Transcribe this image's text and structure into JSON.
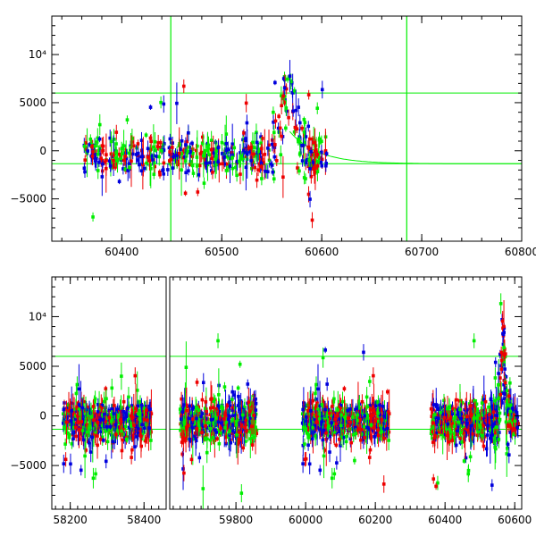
{
  "chart_data": [
    {
      "type": "scatter",
      "panel": "top",
      "title": "",
      "xlabel": "",
      "ylabel": "",
      "xlim": [
        60330,
        60800
      ],
      "ylim": [
        -9400,
        14000
      ],
      "x_ticks": [
        60400,
        60500,
        60600,
        60700,
        60800
      ],
      "y_ticks": [
        {
          "value": -5000,
          "label": "−5000"
        },
        {
          "value": 0,
          "label": "0"
        },
        {
          "value": 5000,
          "label": "5000"
        },
        {
          "value": 10000,
          "label": "10⁴"
        }
      ],
      "grid": false,
      "series_colors": [
        "#0000dd",
        "#ee0000",
        "#00ee00"
      ],
      "x_ranges": [
        [
          60362,
          60605
        ]
      ],
      "reference_lines": {
        "horizontal": [
          6000,
          -1350
        ],
        "vertical": [
          60449,
          60685
        ]
      },
      "decay_curve": {
        "from": 60568,
        "to": 60800,
        "start": 2000,
        "asymptote": -1350
      },
      "annotations": []
    },
    {
      "type": "scatter",
      "panel": "bottom",
      "title": "",
      "xlabel": "",
      "ylabel": "",
      "xlim": [
        58150,
        60620
      ],
      "ylim": [
        -9400,
        14000
      ],
      "broken_axis": true,
      "x_ticks": [
        58200,
        58400,
        59800,
        60000,
        60200,
        60400,
        60600
      ],
      "y_ticks": [
        {
          "value": -5000,
          "label": "−5000"
        },
        {
          "value": 0,
          "label": "0"
        },
        {
          "value": 5000,
          "label": "5000"
        },
        {
          "value": 10000,
          "label": "10⁴"
        }
      ],
      "grid": false,
      "series_colors": [
        "#0000dd",
        "#ee0000",
        "#00ee00"
      ],
      "x_ranges": [
        [
          58180,
          58420
        ],
        [
          59640,
          59860
        ],
        [
          59990,
          60240
        ],
        [
          60360,
          60610
        ]
      ],
      "reference_lines": {
        "horizontal": [
          6000,
          -1350
        ],
        "vertical": []
      },
      "annotations": []
    }
  ]
}
